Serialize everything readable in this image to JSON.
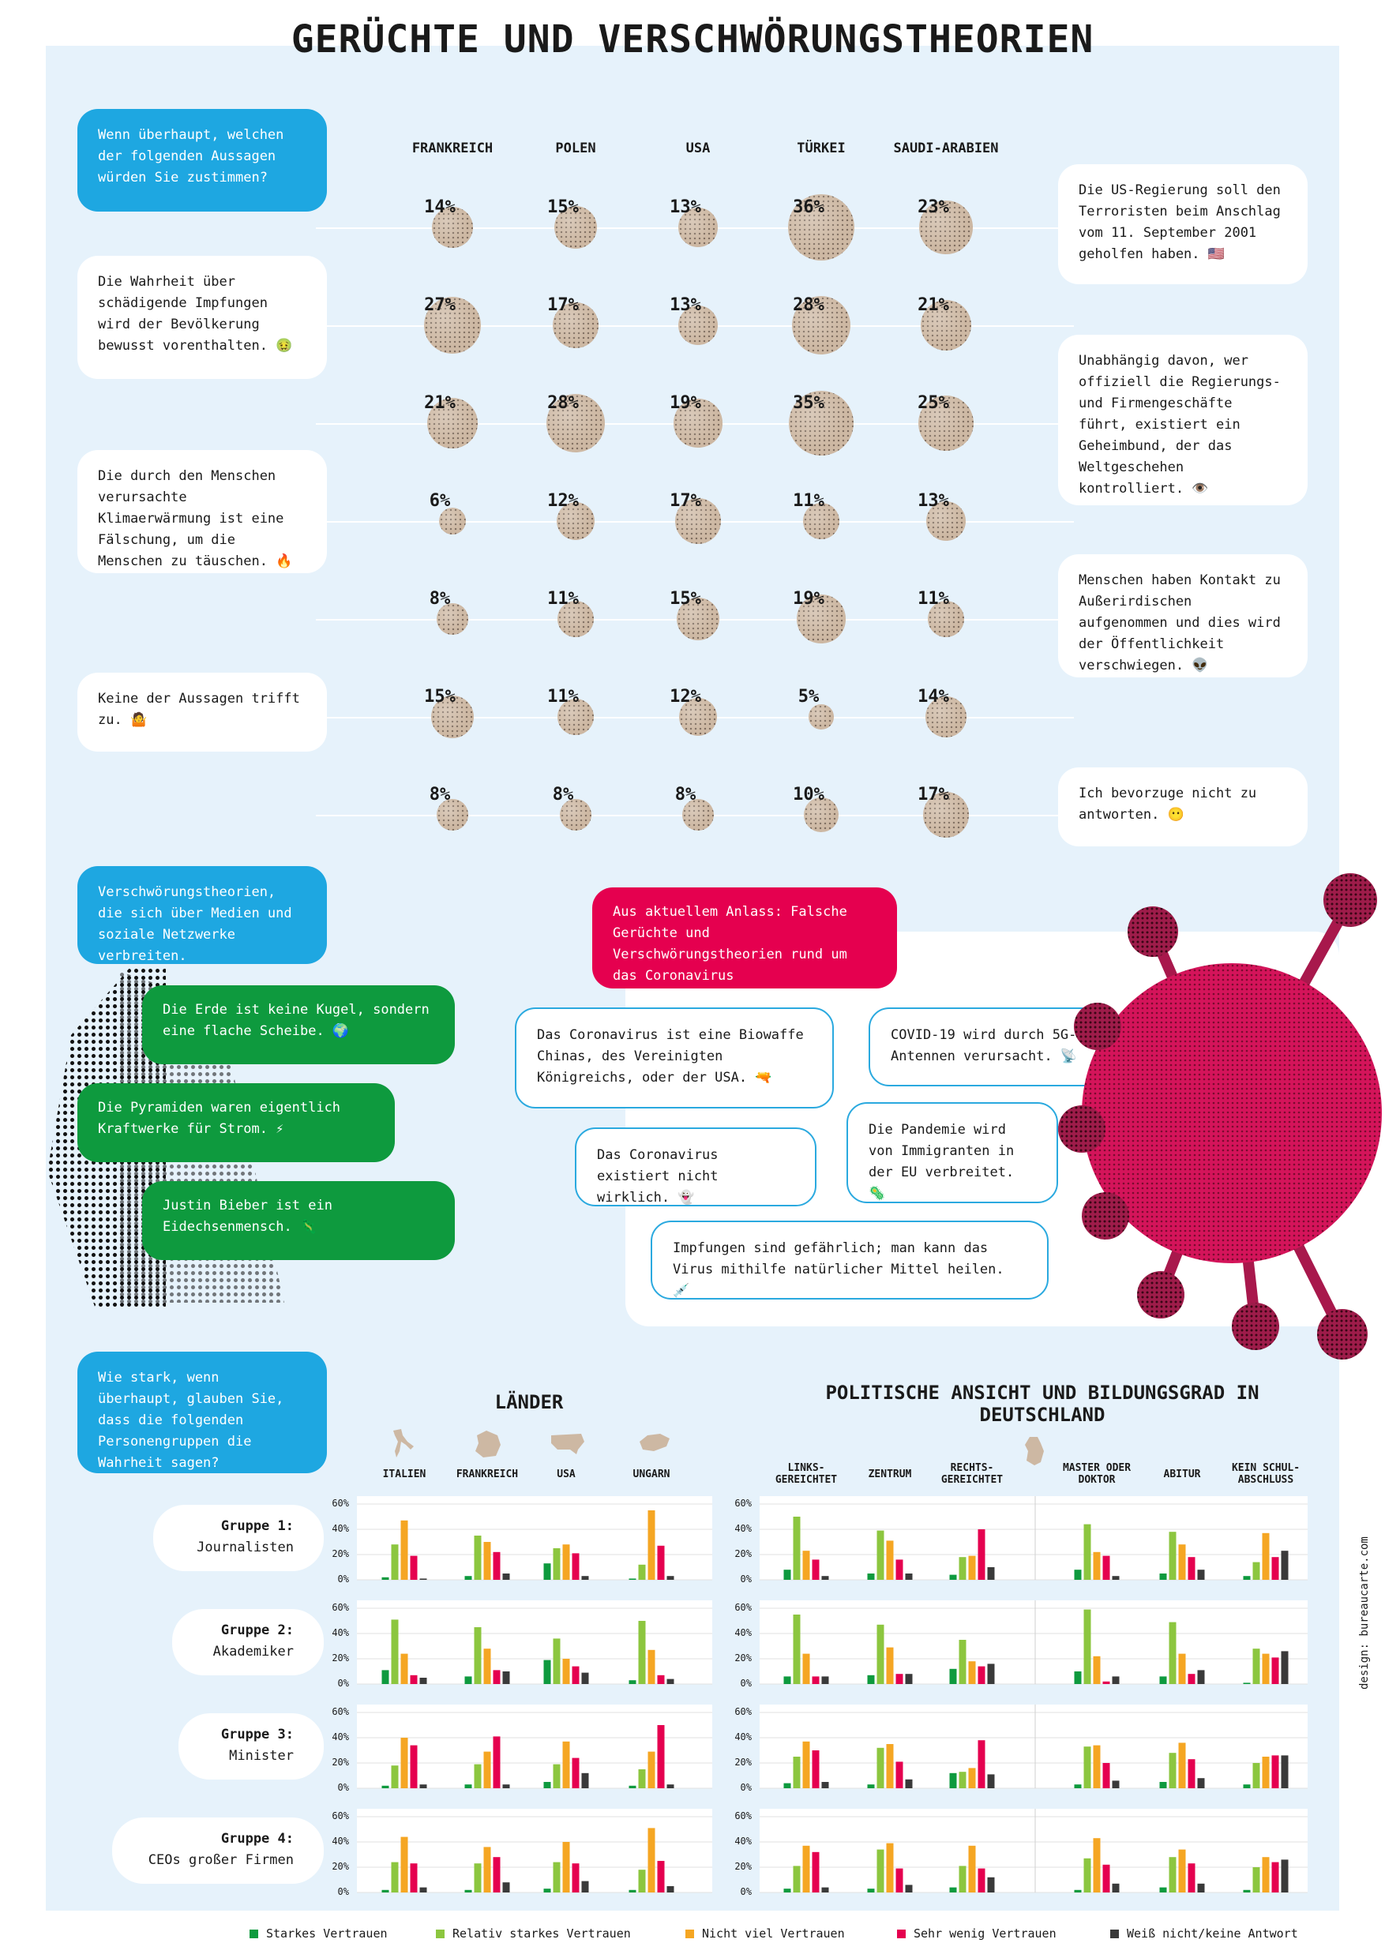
{
  "title": "GERÜCHTE UND VERSCHWÖRUNGSTHEORIEN",
  "survey": {
    "question": "Wenn überhaupt, welchen der folgenden Aussagen würden Sie zustimmen?",
    "countries": [
      "FRANKREICH",
      "POLEN",
      "USA",
      "TÜRKEI",
      "SAUDI-ARABIEN"
    ],
    "statements": [
      {
        "text": "Die US-Regierung soll den Terroristen beim Anschlag vom 11. September 2001 geholfen haben. 🇺🇸",
        "values": [
          14,
          15,
          13,
          36,
          23
        ]
      },
      {
        "text": "Die Wahrheit über schädigende Impfungen wird der Bevölkerung bewusst vorenthalten. 🤢",
        "values": [
          27,
          17,
          13,
          28,
          21
        ]
      },
      {
        "text": "Unabhängig davon, wer offiziell die Regierungs- und Firmengeschäfte führt, existiert ein Geheimbund, der das Weltgeschehen kontrolliert. 👁️",
        "values": [
          21,
          28,
          19,
          35,
          25
        ]
      },
      {
        "text": "Die durch den Menschen verursachte Klimaerwärmung ist eine Fälschung, um die Menschen zu täuschen. 🔥",
        "values": [
          6,
          12,
          17,
          11,
          13
        ]
      },
      {
        "text": "Menschen haben Kontakt zu Außerirdischen aufgenommen und dies wird der Öffentlichkeit verschwiegen. 👽",
        "values": [
          8,
          11,
          15,
          19,
          11
        ]
      },
      {
        "text": "Keine der Aussagen trifft zu. 🤷",
        "values": [
          15,
          11,
          12,
          5,
          14
        ]
      },
      {
        "text": "Ich bevorzuge nicht zu antworten. 😶",
        "values": [
          8,
          8,
          8,
          10,
          17
        ]
      }
    ],
    "pct_suffix": "%"
  },
  "social": {
    "header": "Verschwörungstheorien, die sich über Medien und soziale Netzwerke verbreiten.",
    "items": [
      "Die Erde ist keine Kugel, sondern eine flache Scheibe. 🌍",
      "Die Pyramiden waren eigentlich Kraftwerke für Strom. ⚡",
      "Justin Bieber ist ein Eidechsenmensch. 🦎"
    ]
  },
  "corona": {
    "header": "Aus aktuellem Anlass: Falsche Gerüchte und Verschwörungstheorien rund um das Coronavirus",
    "items": [
      "Das Coronavirus ist eine Biowaffe Chinas, des Vereinigten Königreichs, oder der USA. 🔫",
      "COVID-19 wird durch 5G-Antennen verursacht. 📡",
      "Das Coronavirus existiert nicht wirklich. 👻",
      "Die Pandemie wird von Immigranten in der EU verbreitet. 🦠",
      "Impfungen sind gefährlich; man kann das Virus mithilfe natürlicher Mittel heilen. 💉"
    ]
  },
  "trust": {
    "question": "Wie stark, wenn überhaupt, glauben Sie, dass die folgenden Personengruppen die Wahrheit sagen?",
    "countries_title": "LÄNDER",
    "germany_title": "POLITISCHE ANSICHT UND BILDUNGSGRAD IN DEUTSCHLAND",
    "countries": [
      "ITALIEN",
      "FRANKREICH",
      "USA",
      "UNGARN"
    ],
    "germany_groups": [
      "LINKS-GEREICHTET",
      "ZENTRUM",
      "RECHTS-GEREICHTET",
      "MASTER ODER DOKTOR",
      "ABITUR",
      "KEIN SCHUL-ABSCHLUSS"
    ],
    "yticks": [
      "60%",
      "40%",
      "20%",
      "0%"
    ],
    "groups": [
      {
        "label": "Gruppe 1:",
        "name": "Journalisten"
      },
      {
        "label": "Gruppe 2:",
        "name": "Akademiker"
      },
      {
        "label": "Gruppe 3:",
        "name": "Minister"
      },
      {
        "label": "Gruppe 4:",
        "name": "CEOs großer Firmen"
      }
    ],
    "legend": [
      "Starkes Vertrauen",
      "Relativ starkes Vertrauen",
      "Nicht viel Vertrauen",
      "Sehr wenig Vertrauen",
      "Weiß nicht/keine Antwort"
    ],
    "legend_colors": [
      "#0e9a3e",
      "#8cc63f",
      "#f5a623",
      "#e5004f",
      "#3a3a3a"
    ]
  },
  "chart_data": [
    {
      "type": "scatter",
      "title": "Wenn überhaupt, welchen der folgenden Aussagen würden Sie zustimmen?",
      "categories": [
        "FRANKREICH",
        "POLEN",
        "USA",
        "TÜRKEI",
        "SAUDI-ARABIEN"
      ],
      "series": [
        {
          "name": "Die US-Regierung soll den Terroristen beim Anschlag vom 11. September 2001 geholfen haben.",
          "values": [
            14,
            15,
            13,
            36,
            23
          ]
        },
        {
          "name": "Die Wahrheit über schädigende Impfungen wird der Bevölkerung bewusst vorenthalten.",
          "values": [
            27,
            17,
            13,
            28,
            21
          ]
        },
        {
          "name": "Unabhängig davon, wer offiziell die Regierungs- und Firmengeschäfte führt, existiert ein Geheimbund, der das Weltgeschehen kontrolliert.",
          "values": [
            21,
            28,
            19,
            35,
            25
          ]
        },
        {
          "name": "Die durch den Menschen verursachte Klimaerwärmung ist eine Fälschung, um die Menschen zu täuschen.",
          "values": [
            6,
            12,
            17,
            11,
            13
          ]
        },
        {
          "name": "Menschen haben Kontakt zu Außerirdischen aufgenommen und dies wird der Öffentlichkeit verschwiegen.",
          "values": [
            8,
            11,
            15,
            19,
            11
          ]
        },
        {
          "name": "Keine der Aussagen trifft zu.",
          "values": [
            15,
            11,
            12,
            5,
            14
          ]
        },
        {
          "name": "Ich bevorzuge nicht zu antworten.",
          "values": [
            8,
            8,
            8,
            10,
            17
          ]
        }
      ]
    },
    {
      "type": "bar",
      "title": "LÄNDER",
      "categories": [
        "ITALIEN",
        "FRANKREICH",
        "USA",
        "UNGARN"
      ],
      "series_names": [
        "Starkes Vertrauen",
        "Relativ starkes Vertrauen",
        "Nicht viel Vertrauen",
        "Sehr wenig Vertrauen",
        "Weiß nicht/keine Antwort"
      ],
      "ylim": [
        0,
        60
      ],
      "groups": [
        {
          "name": "Journalisten",
          "values": [
            [
              2,
              28,
              47,
              19,
              1
            ],
            [
              3,
              35,
              30,
              22,
              5
            ],
            [
              13,
              25,
              28,
              21,
              3
            ],
            [
              1,
              12,
              55,
              27,
              3
            ]
          ]
        },
        {
          "name": "Akademiker",
          "values": [
            [
              11,
              51,
              24,
              7,
              5
            ],
            [
              6,
              45,
              28,
              11,
              10
            ],
            [
              19,
              36,
              20,
              14,
              9
            ],
            [
              3,
              50,
              27,
              7,
              4
            ]
          ]
        },
        {
          "name": "Minister",
          "values": [
            [
              2,
              18,
              40,
              34,
              3
            ],
            [
              3,
              19,
              29,
              41,
              3
            ],
            [
              5,
              19,
              37,
              24,
              12
            ],
            [
              2,
              15,
              29,
              50,
              3
            ]
          ]
        },
        {
          "name": "CEOs großer Firmen",
          "values": [
            [
              2,
              24,
              44,
              23,
              4
            ],
            [
              2,
              23,
              36,
              28,
              8
            ],
            [
              3,
              24,
              40,
              23,
              9
            ],
            [
              2,
              18,
              51,
              25,
              5
            ]
          ]
        }
      ]
    },
    {
      "type": "bar",
      "title": "POLITISCHE ANSICHT UND BILDUNGSGRAD IN DEUTSCHLAND",
      "categories": [
        "LINKS-GEREICHTET",
        "ZENTRUM",
        "RECHTS-GEREICHTET",
        "MASTER ODER DOKTOR",
        "ABITUR",
        "KEIN SCHUL-ABSCHLUSS"
      ],
      "series_names": [
        "Starkes Vertrauen",
        "Relativ starkes Vertrauen",
        "Nicht viel Vertrauen",
        "Sehr wenig Vertrauen",
        "Weiß nicht/keine Antwort"
      ],
      "ylim": [
        0,
        60
      ],
      "groups": [
        {
          "name": "Journalisten",
          "values": [
            [
              8,
              50,
              23,
              16,
              3
            ],
            [
              5,
              39,
              31,
              16,
              5
            ],
            [
              4,
              18,
              19,
              40,
              10
            ],
            [
              8,
              44,
              22,
              19,
              3
            ],
            [
              5,
              38,
              28,
              18,
              8
            ],
            [
              3,
              14,
              37,
              18,
              23
            ]
          ]
        },
        {
          "name": "Akademiker",
          "values": [
            [
              6,
              55,
              24,
              6,
              6
            ],
            [
              7,
              47,
              29,
              8,
              8
            ],
            [
              12,
              35,
              18,
              14,
              16
            ],
            [
              10,
              59,
              22,
              2,
              6
            ],
            [
              6,
              49,
              24,
              8,
              11
            ],
            [
              1,
              28,
              24,
              21,
              26
            ]
          ]
        },
        {
          "name": "Minister",
          "values": [
            [
              4,
              25,
              37,
              30,
              5
            ],
            [
              3,
              32,
              35,
              21,
              7
            ],
            [
              12,
              13,
              16,
              38,
              11
            ],
            [
              3,
              33,
              34,
              20,
              6
            ],
            [
              5,
              28,
              36,
              23,
              8
            ],
            [
              3,
              20,
              25,
              26,
              26
            ]
          ]
        },
        {
          "name": "CEOs großer Firmen",
          "values": [
            [
              3,
              21,
              37,
              32,
              4
            ],
            [
              3,
              34,
              39,
              19,
              6
            ],
            [
              4,
              21,
              37,
              19,
              12
            ],
            [
              2,
              27,
              43,
              22,
              7
            ],
            [
              4,
              28,
              34,
              23,
              7
            ],
            [
              2,
              20,
              28,
              24,
              26
            ]
          ]
        }
      ]
    }
  ],
  "credit": "design: bureaucarte.com"
}
